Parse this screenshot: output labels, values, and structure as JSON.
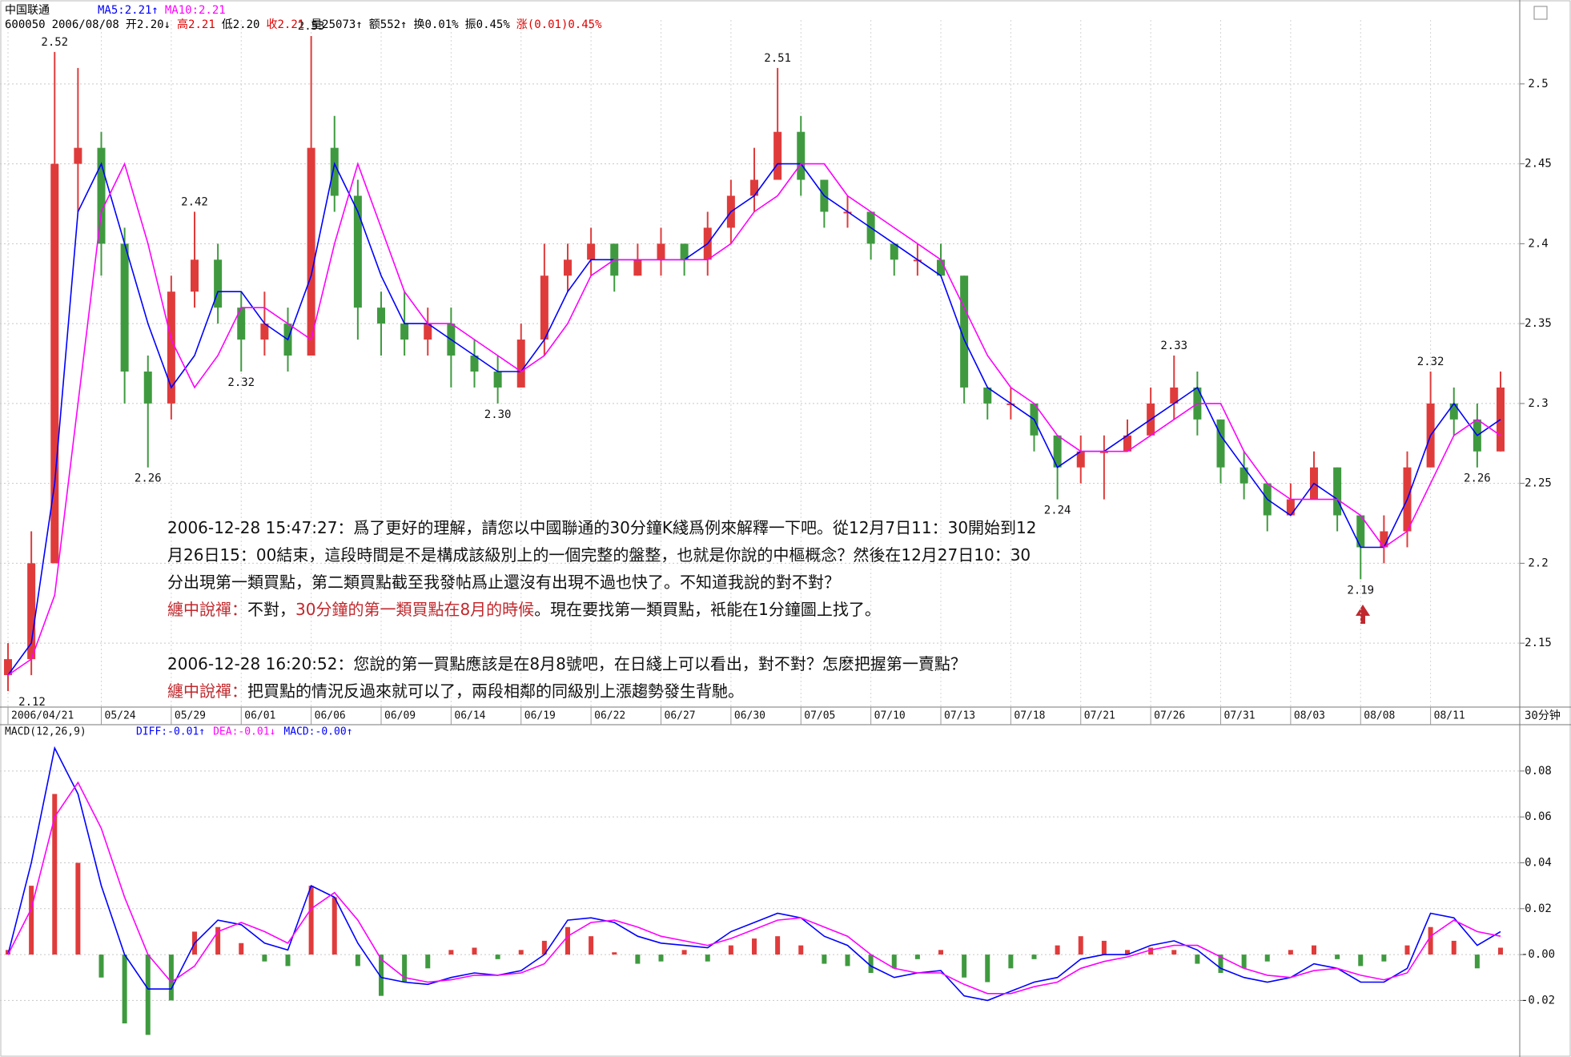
{
  "header": {
    "title": "中国联通",
    "ma": [
      {
        "text": "MA5:2.21↑",
        "color": "#0000ff"
      },
      {
        "text": "MA10:2.21",
        "color": "#ff00ff"
      }
    ],
    "quote": [
      {
        "text": "600050",
        "color": "#000000"
      },
      {
        "text": "2006/08/08",
        "color": "#000000"
      },
      {
        "text": "开2.20↓",
        "color": "#000000"
      },
      {
        "text": "高2.21",
        "color": "#e00000"
      },
      {
        "text": "低2.20",
        "color": "#000000"
      },
      {
        "text": "收2.21",
        "color": "#e00000"
      },
      {
        "text": "量25073↑",
        "color": "#000000"
      },
      {
        "text": "额552↑",
        "color": "#000000"
      },
      {
        "text": "换0.01%",
        "color": "#000000"
      },
      {
        "text": "振0.45%",
        "color": "#000000"
      },
      {
        "text": "涨(0.01)0.45%",
        "color": "#e00000"
      }
    ]
  },
  "chart_data": [
    {
      "type": "candlestick",
      "period_label": "30分钟",
      "categories": [
        "2006/04/21",
        null,
        null,
        null,
        "05/24",
        null,
        null,
        "05/29",
        null,
        null,
        "06/01",
        null,
        null,
        "06/06",
        null,
        null,
        "06/09",
        null,
        null,
        "06/14",
        null,
        null,
        "06/19",
        null,
        null,
        "06/22",
        null,
        null,
        "06/27",
        null,
        null,
        "06/30",
        null,
        null,
        "07/05",
        null,
        null,
        "07/10",
        null,
        null,
        "07/13",
        null,
        null,
        "07/18",
        null,
        null,
        "07/21",
        null,
        null,
        "07/26",
        null,
        null,
        "07/31",
        null,
        null,
        "08/03",
        null,
        null,
        "08/08",
        null,
        null,
        "08/11",
        null,
        null,
        null
      ],
      "open": [
        2.13,
        2.14,
        2.2,
        2.45,
        2.46,
        2.4,
        2.32,
        2.3,
        2.37,
        2.39,
        2.36,
        2.34,
        2.35,
        2.33,
        2.46,
        2.43,
        2.36,
        2.35,
        2.34,
        2.35,
        2.33,
        2.32,
        2.31,
        2.34,
        2.38,
        2.39,
        2.4,
        2.38,
        2.39,
        2.4,
        2.39,
        2.41,
        2.43,
        2.44,
        2.47,
        2.44,
        2.42,
        2.42,
        2.4,
        2.39,
        2.39,
        2.38,
        2.31,
        2.3,
        2.3,
        2.28,
        2.26,
        2.27,
        2.27,
        2.28,
        2.3,
        2.31,
        2.29,
        2.26,
        2.25,
        2.23,
        2.24,
        2.26,
        2.23,
        2.21,
        2.22,
        2.26,
        2.3,
        2.29,
        2.27
      ],
      "high": [
        2.15,
        2.22,
        2.52,
        2.51,
        2.47,
        2.41,
        2.33,
        2.38,
        2.42,
        2.4,
        2.37,
        2.37,
        2.36,
        2.53,
        2.48,
        2.44,
        2.37,
        2.37,
        2.36,
        2.36,
        2.34,
        2.33,
        2.35,
        2.4,
        2.4,
        2.41,
        2.4,
        2.4,
        2.41,
        2.4,
        2.42,
        2.44,
        2.46,
        2.51,
        2.48,
        2.44,
        2.43,
        2.42,
        2.4,
        2.4,
        2.4,
        2.38,
        2.31,
        2.31,
        2.3,
        2.28,
        2.28,
        2.28,
        2.29,
        2.31,
        2.33,
        2.32,
        2.29,
        2.27,
        2.25,
        2.25,
        2.27,
        2.26,
        2.23,
        2.23,
        2.27,
        2.32,
        2.31,
        2.3,
        2.32
      ],
      "low": [
        2.12,
        2.13,
        2.2,
        2.42,
        2.38,
        2.3,
        2.26,
        2.29,
        2.36,
        2.35,
        2.32,
        2.33,
        2.32,
        2.33,
        2.42,
        2.34,
        2.33,
        2.33,
        2.33,
        2.31,
        2.31,
        2.3,
        2.31,
        2.33,
        2.37,
        2.38,
        2.37,
        2.38,
        2.38,
        2.38,
        2.38,
        2.4,
        2.42,
        2.44,
        2.43,
        2.41,
        2.41,
        2.39,
        2.38,
        2.38,
        2.38,
        2.3,
        2.29,
        2.29,
        2.27,
        2.24,
        2.25,
        2.24,
        2.27,
        2.28,
        2.29,
        2.28,
        2.25,
        2.24,
        2.22,
        2.23,
        2.24,
        2.22,
        2.19,
        2.2,
        2.21,
        2.26,
        2.28,
        2.26,
        2.27
      ],
      "close": [
        2.14,
        2.2,
        2.45,
        2.46,
        2.4,
        2.32,
        2.3,
        2.37,
        2.39,
        2.36,
        2.34,
        2.35,
        2.33,
        2.46,
        2.43,
        2.36,
        2.35,
        2.34,
        2.35,
        2.33,
        2.32,
        2.31,
        2.34,
        2.38,
        2.39,
        2.4,
        2.38,
        2.39,
        2.4,
        2.39,
        2.41,
        2.43,
        2.44,
        2.47,
        2.44,
        2.42,
        2.42,
        2.4,
        2.39,
        2.39,
        2.38,
        2.31,
        2.3,
        2.3,
        2.28,
        2.26,
        2.27,
        2.27,
        2.28,
        2.3,
        2.31,
        2.29,
        2.26,
        2.25,
        2.23,
        2.24,
        2.26,
        2.23,
        2.21,
        2.22,
        2.26,
        2.3,
        2.29,
        2.27,
        2.31
      ],
      "up_color": "#e03b3b",
      "down_color": "#3f9a3f",
      "series": [
        {
          "name": "MA5",
          "color": "#0000ff",
          "values": [
            2.13,
            2.15,
            2.25,
            2.42,
            2.45,
            2.4,
            2.35,
            2.31,
            2.33,
            2.37,
            2.37,
            2.35,
            2.34,
            2.38,
            2.45,
            2.42,
            2.38,
            2.35,
            2.35,
            2.34,
            2.33,
            2.32,
            2.32,
            2.34,
            2.37,
            2.39,
            2.39,
            2.39,
            2.39,
            2.39,
            2.4,
            2.42,
            2.43,
            2.45,
            2.45,
            2.43,
            2.42,
            2.41,
            2.4,
            2.39,
            2.38,
            2.34,
            2.31,
            2.3,
            2.29,
            2.26,
            2.27,
            2.27,
            2.28,
            2.29,
            2.3,
            2.31,
            2.28,
            2.26,
            2.24,
            2.23,
            2.25,
            2.24,
            2.21,
            2.21,
            2.24,
            2.28,
            2.3,
            2.28,
            2.29
          ]
        },
        {
          "name": "MA10",
          "color": "#ff00ff",
          "values": [
            2.13,
            2.14,
            2.18,
            2.3,
            2.42,
            2.45,
            2.4,
            2.34,
            2.31,
            2.33,
            2.36,
            2.36,
            2.35,
            2.34,
            2.4,
            2.45,
            2.41,
            2.37,
            2.35,
            2.35,
            2.34,
            2.33,
            2.32,
            2.33,
            2.35,
            2.38,
            2.39,
            2.39,
            2.39,
            2.39,
            2.39,
            2.4,
            2.42,
            2.43,
            2.45,
            2.45,
            2.43,
            2.42,
            2.41,
            2.4,
            2.39,
            2.36,
            2.33,
            2.31,
            2.3,
            2.28,
            2.27,
            2.27,
            2.27,
            2.28,
            2.29,
            2.3,
            2.3,
            2.27,
            2.25,
            2.24,
            2.24,
            2.24,
            2.23,
            2.21,
            2.22,
            2.25,
            2.28,
            2.29,
            2.28
          ]
        }
      ],
      "peak_labels": [
        {
          "value": 2.52,
          "label": "2.52",
          "index": 2,
          "side": "high"
        },
        {
          "value": 2.26,
          "label": "2.26",
          "index": 6,
          "side": "low"
        },
        {
          "value": 2.42,
          "label": "2.42",
          "index": 8,
          "side": "high"
        },
        {
          "value": 2.32,
          "label": "2.32",
          "index": 10,
          "side": "low"
        },
        {
          "value": 2.53,
          "label": "2.53",
          "index": 13,
          "side": "high"
        },
        {
          "value": 2.3,
          "label": "2.30",
          "index": 21,
          "side": "low"
        },
        {
          "value": 2.51,
          "label": "2.51",
          "index": 33,
          "side": "high"
        },
        {
          "value": 2.24,
          "label": "2.24",
          "index": 45,
          "side": "low"
        },
        {
          "value": 2.33,
          "label": "2.33",
          "index": 50,
          "side": "high"
        },
        {
          "value": 2.19,
          "label": "2.19",
          "index": 58,
          "side": "low"
        },
        {
          "value": 2.32,
          "label": "2.32",
          "index": 61,
          "side": "high"
        },
        {
          "value": 2.26,
          "label": "2.26",
          "index": 63,
          "side": "low"
        },
        {
          "value": 2.12,
          "label": "2.12",
          "index": 0,
          "side": "low"
        }
      ],
      "ylim": [
        2.11,
        2.54
      ],
      "yticks": [
        2.15,
        2.2,
        2.25,
        2.3,
        2.35,
        2.4,
        2.45,
        2.5
      ],
      "ytick_labels": null,
      "grid": true
    },
    {
      "type": "macd",
      "title": "MACD(12,26,9)",
      "legend": [
        {
          "text": "DIFF:-0.01↑",
          "color": "#0000ff"
        },
        {
          "text": "DEA:-0.01↓",
          "color": "#ff00ff"
        },
        {
          "text": "MACD:-0.00↑",
          "color": "#0000ff"
        }
      ],
      "values": [
        0.002,
        0.03,
        0.07,
        0.04,
        -0.01,
        -0.03,
        -0.035,
        -0.02,
        0.01,
        0.012,
        0.005,
        -0.003,
        -0.005,
        0.03,
        0.025,
        -0.005,
        -0.018,
        -0.012,
        -0.006,
        0.002,
        0.003,
        -0.002,
        0.002,
        0.006,
        0.012,
        0.008,
        0.001,
        -0.004,
        -0.003,
        0.002,
        -0.003,
        0.004,
        0.007,
        0.008,
        0.004,
        -0.004,
        -0.005,
        -0.008,
        -0.006,
        -0.002,
        0.002,
        -0.01,
        -0.012,
        -0.006,
        -0.002,
        0.004,
        0.008,
        0.006,
        0.002,
        0.003,
        0.002,
        -0.004,
        -0.008,
        -0.006,
        -0.003,
        0.002,
        0.004,
        -0.002,
        -0.005,
        -0.003,
        0.004,
        0.012,
        0.006,
        -0.006,
        0.003
      ],
      "up_color": "#e03b3b",
      "down_color": "#3f9a3f",
      "series": [
        {
          "name": "DIFF",
          "color": "#0000ff",
          "values": [
            0.0,
            0.04,
            0.09,
            0.07,
            0.03,
            0.0,
            -0.015,
            -0.015,
            0.005,
            0.015,
            0.013,
            0.005,
            0.002,
            0.03,
            0.025,
            0.005,
            -0.01,
            -0.012,
            -0.013,
            -0.01,
            -0.008,
            -0.009,
            -0.007,
            0.0,
            0.015,
            0.016,
            0.014,
            0.008,
            0.005,
            0.004,
            0.003,
            0.01,
            0.014,
            0.018,
            0.016,
            0.008,
            0.004,
            -0.005,
            -0.01,
            -0.008,
            -0.007,
            -0.018,
            -0.02,
            -0.016,
            -0.012,
            -0.01,
            -0.002,
            0.0,
            0.0,
            0.004,
            0.006,
            0.002,
            -0.006,
            -0.01,
            -0.012,
            -0.01,
            -0.004,
            -0.006,
            -0.012,
            -0.012,
            -0.006,
            0.018,
            0.016,
            0.004,
            0.01
          ]
        },
        {
          "name": "DEA",
          "color": "#ff00ff",
          "values": [
            0.0,
            0.02,
            0.06,
            0.075,
            0.055,
            0.025,
            0.0,
            -0.012,
            -0.005,
            0.01,
            0.014,
            0.01,
            0.005,
            0.02,
            0.027,
            0.015,
            -0.002,
            -0.01,
            -0.012,
            -0.011,
            -0.009,
            -0.009,
            -0.008,
            -0.004,
            0.008,
            0.014,
            0.015,
            0.012,
            0.008,
            0.006,
            0.004,
            0.007,
            0.011,
            0.015,
            0.016,
            0.012,
            0.008,
            0.0,
            -0.006,
            -0.008,
            -0.008,
            -0.013,
            -0.017,
            -0.017,
            -0.014,
            -0.012,
            -0.006,
            -0.003,
            -0.001,
            0.002,
            0.004,
            0.004,
            -0.001,
            -0.006,
            -0.009,
            -0.01,
            -0.007,
            -0.006,
            -0.009,
            -0.011,
            -0.008,
            0.008,
            0.015,
            0.01,
            0.008
          ]
        }
      ],
      "ylim": [
        -0.0415,
        0.0995
      ],
      "yticks": [
        0.08,
        0.06,
        0.04,
        0.02,
        {
          "value": 0,
          "label": "-0.00"
        },
        -0.02
      ],
      "grid": true
    }
  ],
  "annotation": {
    "blocks": [
      [
        [
          {
            "text": "2006-12-28 15:47:27：爲了更好的理解，請您以中國聯通的30分鐘K綫爲例來解釋一下吧。從12月7日11：30開始到12",
            "color": "#111111"
          }
        ],
        [
          {
            "text": "月26日15：00結束，這段時間是不是構成該級別上的一個完整的盤整，也就是你說的中樞概念？然後在12月27日10：30",
            "color": "#111111"
          }
        ],
        [
          {
            "text": "分出現第一類買點，第二類買點截至我發帖爲止還沒有出現不過也快了。不知道我說的對不對？",
            "color": "#111111"
          }
        ],
        [
          {
            "text": "纏中說禪：",
            "color": "#c0282d"
          },
          {
            "text": "不對，",
            "color": "#111111"
          },
          {
            "text": "30分鐘的第一類買點在8月的時候",
            "color": "#c0282d"
          },
          {
            "text": "。現在要找第一類買點，衹能在1分鐘圖上找了。",
            "color": "#111111"
          }
        ]
      ],
      [
        [
          {
            "text": "2006-12-28 16:20:52：您說的第一買點應該是在8月8號吧，在日綫上可以看出，對不對？怎麽把握第一賣點？",
            "color": "#111111"
          }
        ],
        [
          {
            "text": "纏中說禪：",
            "color": "#c0282d"
          },
          {
            "text": "把買點的情況反過來就可以了，兩段相鄰的同級別上漲趨勢發生背馳。",
            "color": "#111111"
          }
        ]
      ]
    ]
  }
}
